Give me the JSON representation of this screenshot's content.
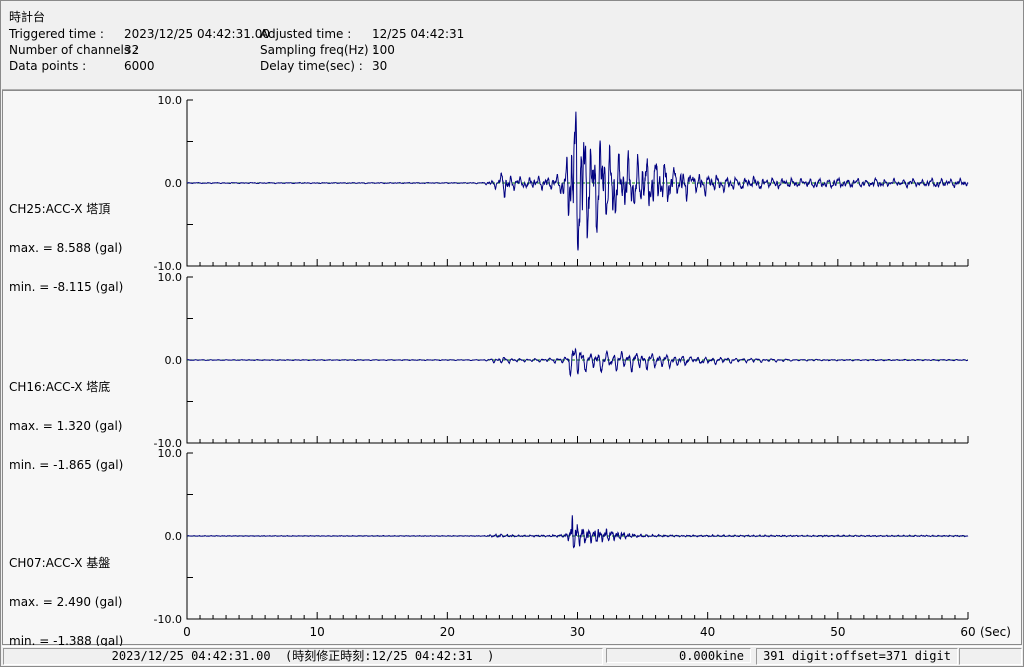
{
  "window": {
    "title": "時計台"
  },
  "header": {
    "rows": [
      {
        "label": "Triggered time :",
        "value": "2023/12/25 04:42:31.00",
        "label2": "Adjusted time :",
        "value2": "12/25 04:42:31"
      },
      {
        "label": "Number of channels :",
        "value": "32",
        "label2": "Sampling freq(Hz) :",
        "value2": "100"
      },
      {
        "label": "Data points :",
        "value": "6000",
        "label2": "Delay time(sec) :",
        "value2": "30"
      }
    ]
  },
  "charts": {
    "y_axis": {
      "top_label": "10.0",
      "zero_label": "0.0",
      "bottom_label": "-10.0",
      "range": [
        -10,
        10
      ]
    },
    "x_axis": {
      "tick_labels": [
        "0",
        "10",
        "20",
        "30",
        "40",
        "50",
        "60"
      ],
      "tick_values": [
        0,
        10,
        20,
        30,
        40,
        50,
        60
      ],
      "minor_step": 1,
      "unit_label": "(Sec)",
      "range_sec": [
        0,
        60
      ]
    },
    "channels": [
      {
        "name": "CH25:ACC-X 塔頂",
        "max_label": "max. = 8.588 (gal)",
        "min_label": "min. = -8.115 (gal)"
      },
      {
        "name": "CH16:ACC-X 塔底",
        "max_label": "max. = 1.320 (gal)",
        "min_label": "min. = -1.865 (gal)"
      },
      {
        "name": "CH07:ACC-X 基盤",
        "max_label": "max. = 2.490 (gal)",
        "min_label": "min. = -1.388 (gal)"
      }
    ]
  },
  "chart_data": [
    {
      "type": "line",
      "name": "CH25:ACC-X 塔頂",
      "ylabel": "gal",
      "ylim": [
        -10,
        10
      ],
      "duration_sec": 60,
      "sample_dt_sec": 0.02,
      "max_gal": 8.588,
      "min_gal": -8.115,
      "seed": 101,
      "dominant_freqs_hz": [
        [
          1.4,
          0.45
        ],
        [
          2.8,
          0.35
        ],
        [
          5.5,
          0.25
        ],
        [
          0.75,
          0.15
        ]
      ],
      "envelope_t_amp": [
        [
          0,
          0.05
        ],
        [
          22.8,
          0.05
        ],
        [
          23.2,
          0.3
        ],
        [
          24.0,
          0.6
        ],
        [
          24.3,
          1.9
        ],
        [
          24.7,
          0.9
        ],
        [
          25.5,
          0.55
        ],
        [
          26.5,
          0.6
        ],
        [
          27.5,
          0.75
        ],
        [
          28.6,
          0.9
        ],
        [
          29.1,
          2.2
        ],
        [
          29.5,
          5.5
        ],
        [
          29.8,
          8.8
        ],
        [
          30.2,
          7.5
        ],
        [
          30.8,
          5.8
        ],
        [
          31.5,
          5.0
        ],
        [
          32.5,
          4.2
        ],
        [
          33.5,
          3.2
        ],
        [
          34.5,
          2.8
        ],
        [
          35.5,
          2.6
        ],
        [
          36.5,
          2.4
        ],
        [
          37.5,
          1.8
        ],
        [
          38.5,
          1.4
        ],
        [
          39.5,
          1.2
        ],
        [
          40.5,
          0.9
        ],
        [
          42,
          0.7
        ],
        [
          44,
          0.55
        ],
        [
          46,
          0.5
        ],
        [
          48,
          0.45
        ],
        [
          50,
          0.5
        ],
        [
          52,
          0.4
        ],
        [
          54,
          0.45
        ],
        [
          56,
          0.4
        ],
        [
          58,
          0.45
        ],
        [
          60,
          0.4
        ]
      ]
    },
    {
      "type": "line",
      "name": "CH16:ACC-X 塔底",
      "ylabel": "gal",
      "ylim": [
        -10,
        10
      ],
      "duration_sec": 60,
      "sample_dt_sec": 0.02,
      "max_gal": 1.32,
      "min_gal": -1.865,
      "seed": 202,
      "dominant_freqs_hz": [
        [
          1.7,
          0.5
        ],
        [
          3.4,
          0.3
        ],
        [
          0.9,
          0.18
        ]
      ],
      "envelope_t_amp": [
        [
          0,
          0.04
        ],
        [
          22.8,
          0.04
        ],
        [
          23.2,
          0.15
        ],
        [
          24,
          0.3
        ],
        [
          24.5,
          0.35
        ],
        [
          25,
          0.2
        ],
        [
          26,
          0.15
        ],
        [
          27,
          0.18
        ],
        [
          28,
          0.2
        ],
        [
          29,
          0.35
        ],
        [
          29.4,
          1.1
        ],
        [
          29.7,
          1.9
        ],
        [
          30.1,
          1.3
        ],
        [
          30.6,
          0.9
        ],
        [
          31.5,
          0.95
        ],
        [
          32.5,
          0.85
        ],
        [
          33.5,
          0.95
        ],
        [
          34.5,
          0.85
        ],
        [
          35.5,
          0.8
        ],
        [
          36.5,
          0.7
        ],
        [
          37.5,
          0.6
        ],
        [
          38.5,
          0.45
        ],
        [
          39.5,
          0.35
        ],
        [
          41,
          0.3
        ],
        [
          43,
          0.22
        ],
        [
          45,
          0.15
        ],
        [
          47,
          0.08
        ],
        [
          50,
          0.06
        ],
        [
          55,
          0.06
        ],
        [
          60,
          0.06
        ]
      ]
    },
    {
      "type": "line",
      "name": "CH07:ACC-X 基盤",
      "ylabel": "gal",
      "ylim": [
        -10,
        10
      ],
      "duration_sec": 60,
      "sample_dt_sec": 0.02,
      "max_gal": 2.49,
      "min_gal": -1.388,
      "seed": 303,
      "dominant_freqs_hz": [
        [
          2.2,
          0.45
        ],
        [
          4.6,
          0.3
        ],
        [
          8.0,
          0.2
        ]
      ],
      "envelope_t_amp": [
        [
          0,
          0.04
        ],
        [
          22.8,
          0.04
        ],
        [
          23.2,
          0.12
        ],
        [
          24,
          0.22
        ],
        [
          24.6,
          0.15
        ],
        [
          26,
          0.1
        ],
        [
          27,
          0.12
        ],
        [
          28,
          0.12
        ],
        [
          29,
          0.18
        ],
        [
          29.4,
          0.8
        ],
        [
          29.65,
          2.6
        ],
        [
          29.9,
          1.5
        ],
        [
          30.3,
          1.2
        ],
        [
          30.8,
          1.0
        ],
        [
          31.3,
          0.95
        ],
        [
          31.8,
          0.8
        ],
        [
          32.3,
          0.75
        ],
        [
          32.8,
          0.6
        ],
        [
          33.3,
          0.5
        ],
        [
          33.8,
          0.35
        ],
        [
          34.5,
          0.2
        ],
        [
          35.5,
          0.15
        ],
        [
          37,
          0.12
        ],
        [
          39,
          0.1
        ],
        [
          41,
          0.12
        ],
        [
          43,
          0.1
        ],
        [
          45,
          0.1
        ],
        [
          47,
          0.08
        ],
        [
          50,
          0.1
        ],
        [
          53,
          0.08
        ],
        [
          56,
          0.08
        ],
        [
          60,
          0.08
        ]
      ]
    }
  ],
  "status_bar": {
    "time_text": "2023/12/25 04:42:31.00  (時刻修正時刻:12/25 04:42:31  )",
    "kine_text": "0.000kine",
    "digit_text": "391 digit:offset=371 digit",
    "extra_text": ""
  },
  "colors": {
    "waveform": "#000080",
    "zero_line": "#008000",
    "axis": "#000000",
    "header_bg": "#f0f0f0",
    "panel_bg": "#f7f7f7"
  }
}
